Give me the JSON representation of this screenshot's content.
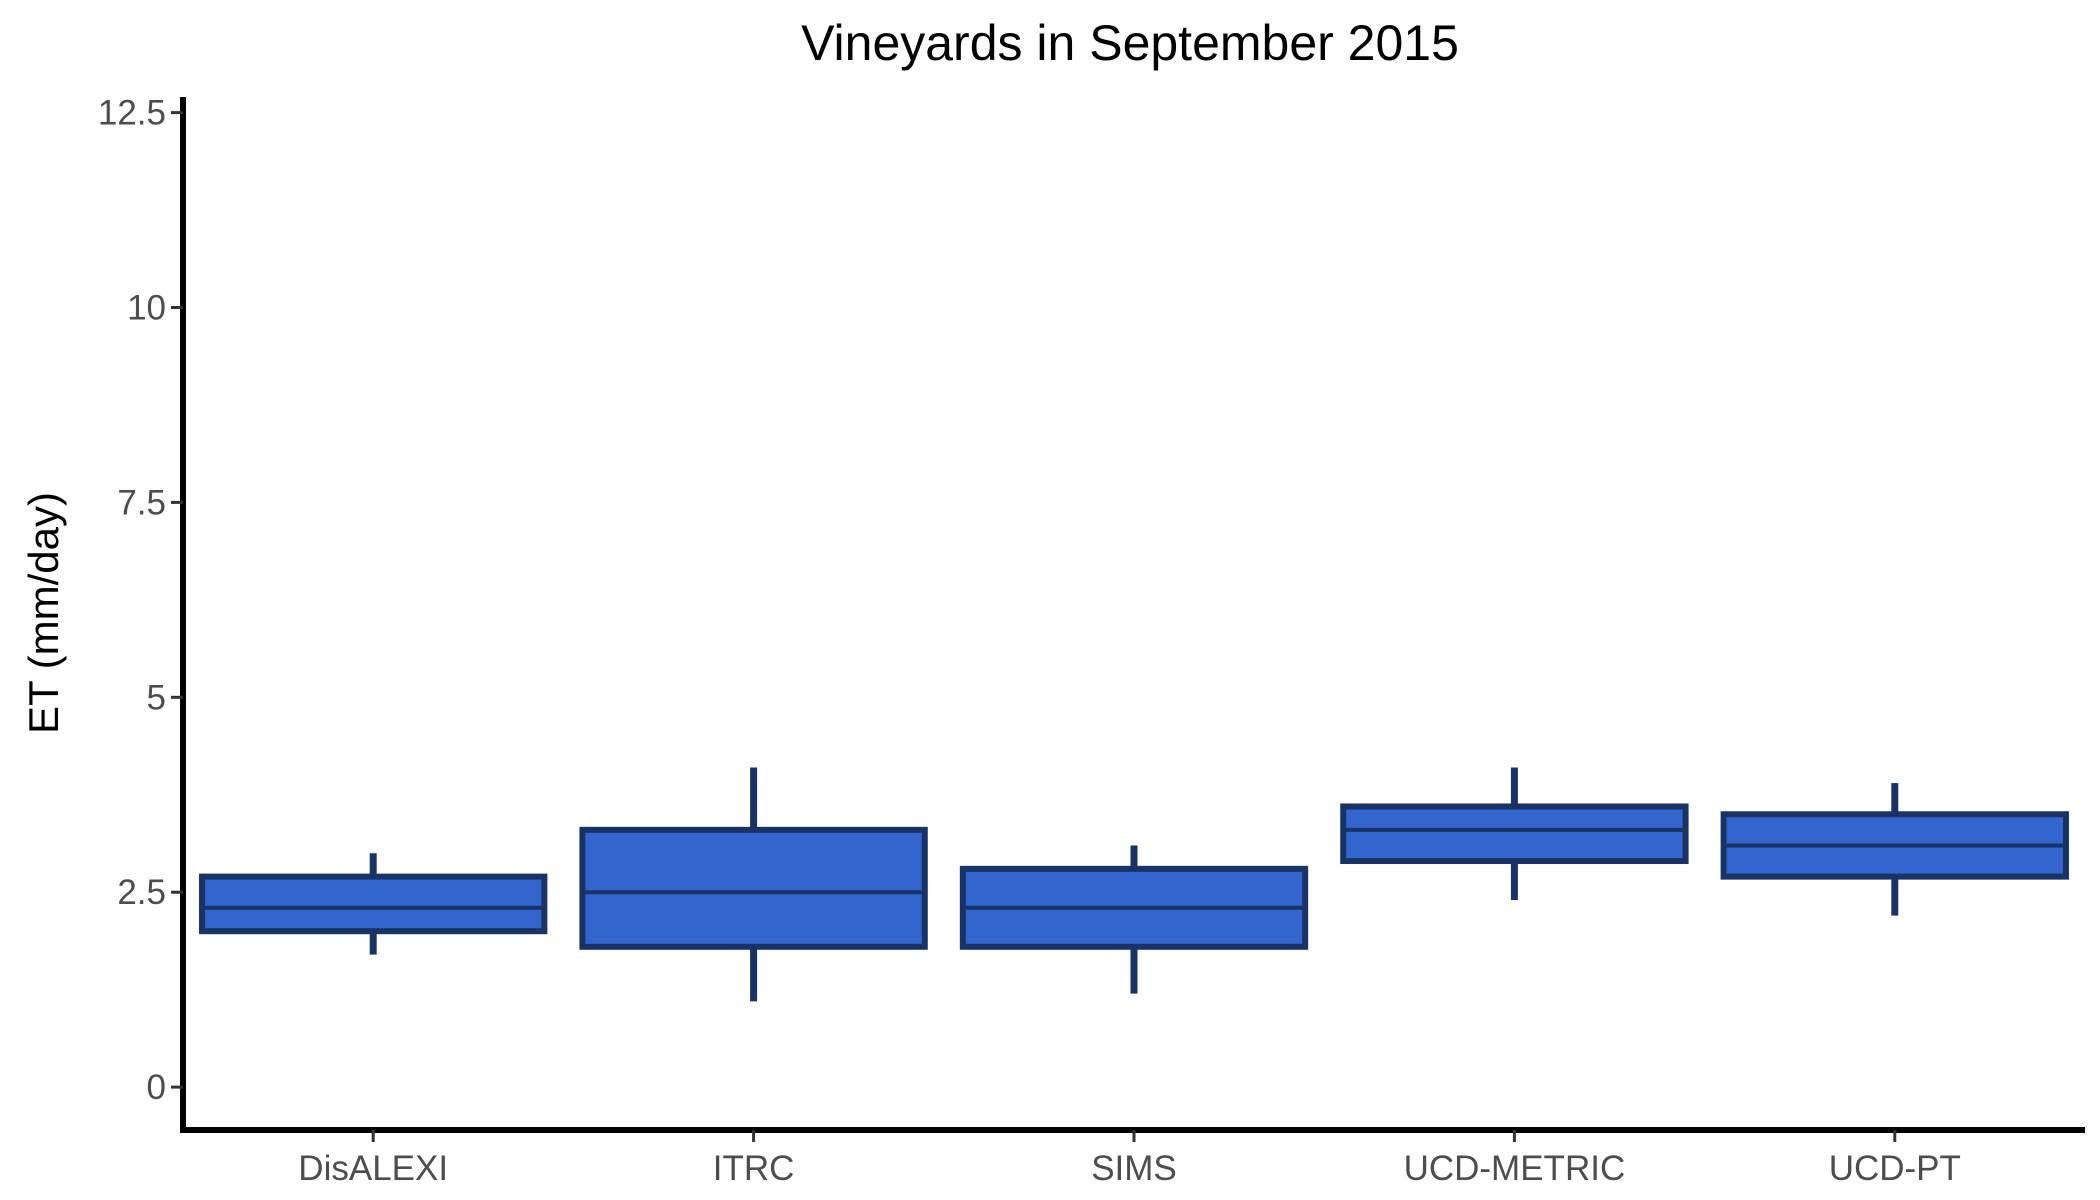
{
  "chart_data": {
    "type": "boxplot",
    "title": "Vineyards in September 2015",
    "xlabel": "",
    "ylabel": "ET (mm/day)",
    "ylim": [
      -0.55,
      12.7
    ],
    "yticks": [
      0,
      2.5,
      5,
      7.5,
      10,
      12.5
    ],
    "ytick_labels": [
      "0",
      "2.5",
      "5",
      "7.5",
      "10",
      "12.5"
    ],
    "categories": [
      "DisALEXI",
      "ITRC",
      "SIMS",
      "UCD-METRIC",
      "UCD-PT"
    ],
    "boxes": [
      {
        "category": "DisALEXI",
        "whisker_low": 1.7,
        "q1": 2.0,
        "median": 2.3,
        "q3": 2.7,
        "whisker_high": 3.0
      },
      {
        "category": "ITRC",
        "whisker_low": 1.1,
        "q1": 1.8,
        "median": 2.5,
        "q3": 3.3,
        "whisker_high": 4.1
      },
      {
        "category": "SIMS",
        "whisker_low": 1.2,
        "q1": 1.8,
        "median": 2.3,
        "q3": 2.8,
        "whisker_high": 3.1
      },
      {
        "category": "UCD-METRIC",
        "whisker_low": 2.4,
        "q1": 2.9,
        "median": 3.3,
        "q3": 3.6,
        "whisker_high": 4.1
      },
      {
        "category": "UCD-PT",
        "whisker_low": 2.2,
        "q1": 2.7,
        "median": 3.1,
        "q3": 3.5,
        "whisker_high": 3.9
      }
    ],
    "fill_color": "#3366cc",
    "line_color": "#1a3366",
    "grid": false,
    "legend": "none"
  }
}
